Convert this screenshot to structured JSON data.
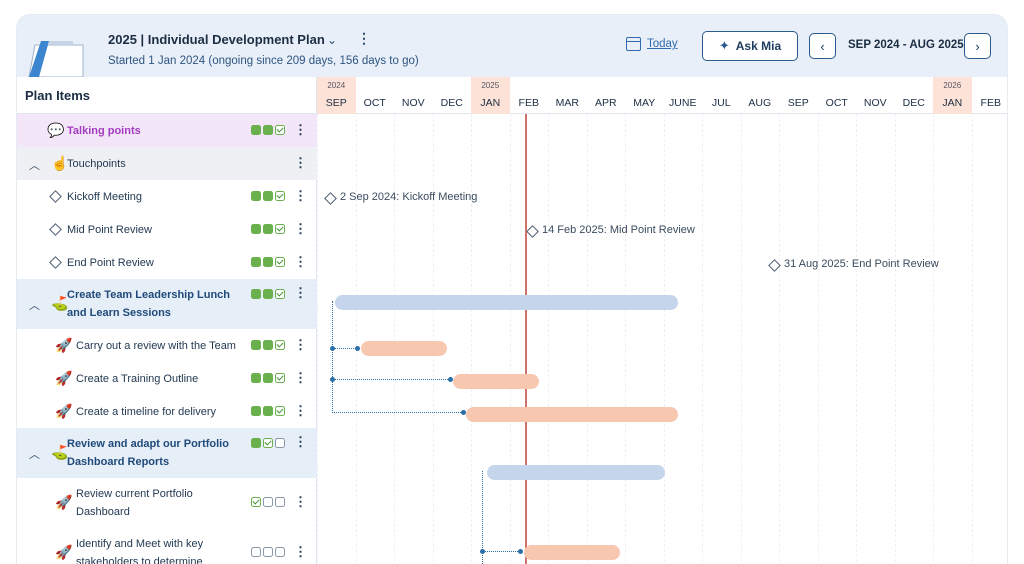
{
  "header": {
    "title": "2025 | Individual Development Plan",
    "subtitle": "Started 1 Jan 2024 (ongoing since 209 days, 156 days to go)",
    "today_label": "Today",
    "ask_label": "Ask Mia",
    "range_label": "SEP 2024 - AUG 2025",
    "prev_icon": "‹",
    "next_icon": "›",
    "title_chevron": "⌄",
    "menu_glyph": "⋮"
  },
  "sidebar": {
    "heading": "Plan Items",
    "rows": [
      {
        "label": "Talking points",
        "status": [
          "on",
          "on",
          "chk"
        ]
      },
      {
        "label": "Touchpoints"
      },
      {
        "label": "Kickoff Meeting",
        "status": [
          "on",
          "on",
          "chk"
        ]
      },
      {
        "label": "Mid Point Review",
        "status": [
          "on",
          "on",
          "chk"
        ]
      },
      {
        "label": "End Point Review",
        "status": [
          "on",
          "on",
          "chk"
        ]
      },
      {
        "label": "Create Team Leadership Lunch and Learn Sessions",
        "status": [
          "on",
          "on",
          "chk"
        ]
      },
      {
        "label": "Carry out a review with the Team",
        "status": [
          "on",
          "on",
          "chk"
        ]
      },
      {
        "label": "Create a Training Outline",
        "status": [
          "on",
          "on",
          "chk"
        ]
      },
      {
        "label": "Create a timeline for delivery",
        "status": [
          "on",
          "on",
          "chk"
        ]
      },
      {
        "label": "Review and adapt our Portfolio Dashboard Reports",
        "status": [
          "on",
          "chk",
          "off"
        ]
      },
      {
        "label": "Review current Portfolio Dashboard",
        "status": [
          "chk",
          "off",
          "off"
        ]
      },
      {
        "label": "Identify and Meet with key stakeholders to determine",
        "status": [
          "off",
          "off",
          "off"
        ]
      }
    ]
  },
  "timeline": {
    "months": [
      {
        "m": "SEP",
        "y": "2024"
      },
      {
        "m": "OCT"
      },
      {
        "m": "NOV"
      },
      {
        "m": "DEC"
      },
      {
        "m": "JAN",
        "y": "2025"
      },
      {
        "m": "FEB"
      },
      {
        "m": "MAR"
      },
      {
        "m": "APR"
      },
      {
        "m": "MAY"
      },
      {
        "m": "JUNE"
      },
      {
        "m": "JUL"
      },
      {
        "m": "AUG"
      },
      {
        "m": "SEP"
      },
      {
        "m": "OCT"
      },
      {
        "m": "NOV"
      },
      {
        "m": "DEC"
      },
      {
        "m": "JAN",
        "y": "2026"
      },
      {
        "m": "FEB"
      }
    ],
    "milestones": [
      {
        "label": "2 Sep 2024: Kickoff Meeting"
      },
      {
        "label": "14 Feb 2025: Mid Point Review"
      },
      {
        "label": "31 Aug 2025: End Point Review"
      }
    ]
  },
  "colors": {
    "accent": "#2e6bb0",
    "status_done": "#6ab04c",
    "today_line": "#d0706a",
    "group_bar": "#c5d6ec",
    "task_bar": "#f8c7b0",
    "group_row_bg": "#e6eef8",
    "talking_row_bg": "#f3e6f8",
    "talking_text": "#a43cbf"
  }
}
